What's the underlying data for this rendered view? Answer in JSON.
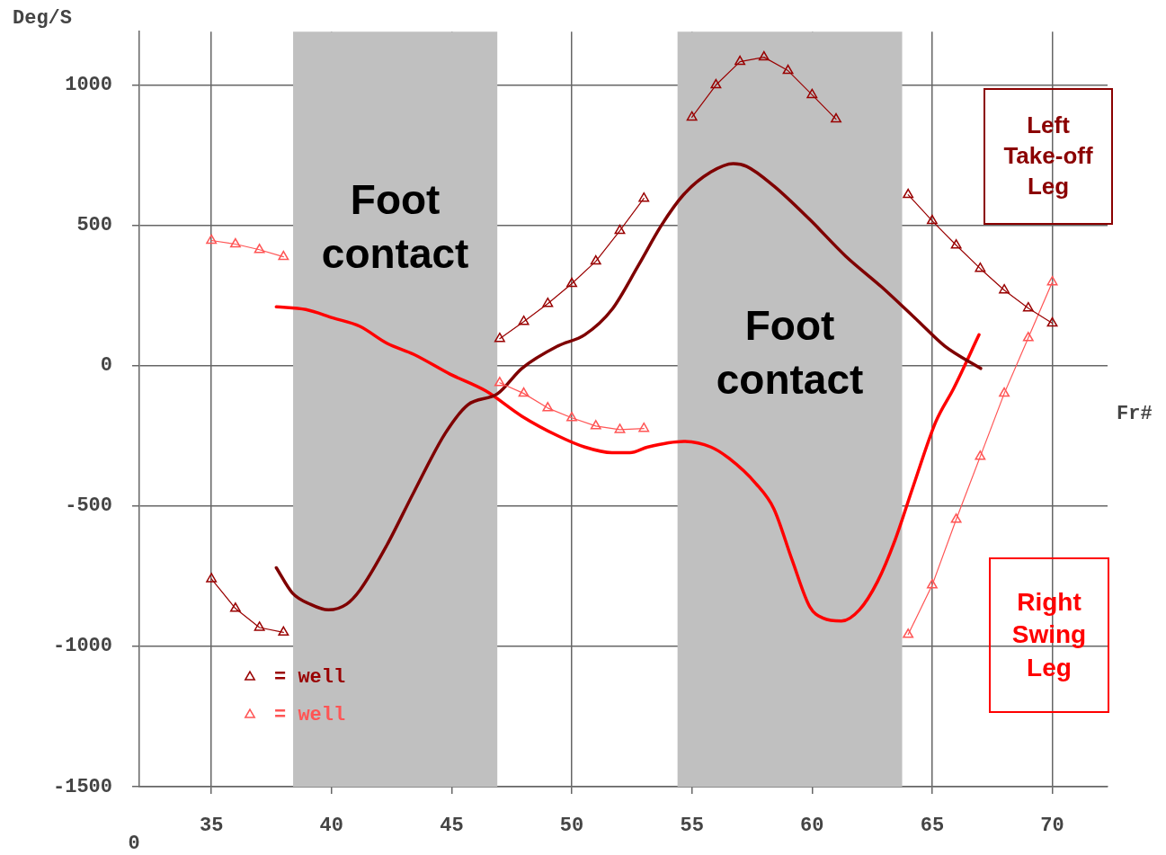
{
  "chart_data": {
    "type": "line",
    "xlabel": "Fr#",
    "ylabel": "Deg/S",
    "xlim": [
      32,
      72.3
    ],
    "xticks": [
      35,
      40,
      45,
      50,
      55,
      60,
      65,
      70
    ],
    "ylim": [
      -1500,
      1190
    ],
    "yticks": [
      -1500,
      -1000,
      -500,
      0,
      500,
      1000
    ],
    "grid": true,
    "legend": "bottom left",
    "x": [
      35,
      36,
      37,
      38,
      39,
      40,
      41,
      42,
      43,
      44,
      45,
      46,
      47,
      48,
      49,
      50,
      51,
      52,
      53,
      54,
      55,
      56,
      57,
      58,
      59,
      60,
      61,
      62,
      63,
      64,
      65,
      66,
      67,
      68,
      69,
      70
    ],
    "series": [
      {
        "name": "= well",
        "color": "#990000",
        "marker": "triangle",
        "values": [
          -760,
          -865,
          -933,
          -950,
          null,
          null,
          null,
          null,
          null,
          null,
          null,
          null,
          96,
          157,
          221,
          292,
          372,
          481,
          596,
          null,
          885,
          1000,
          1083,
          1099,
          1051,
          965,
          878,
          null,
          null,
          609,
          516,
          429,
          346,
          269,
          205,
          151
        ]
      },
      {
        "name": "= well",
        "color": "#ff5555",
        "marker": "triangle",
        "values": [
          446,
          433,
          413,
          388,
          null,
          null,
          null,
          null,
          null,
          null,
          null,
          null,
          -61,
          -99,
          -151,
          -186,
          -215,
          -228,
          -224,
          null,
          null,
          null,
          null,
          null,
          null,
          null,
          null,
          null,
          null,
          -958,
          -782,
          -548,
          -324,
          -99,
          99,
          298
        ]
      },
      {
        "color": "#7f0000",
        "marker": "none",
        "x": [
          37.7,
          38.37,
          39.12,
          39.87,
          40.62,
          41.18,
          42.3,
          43.43,
          44.74,
          45.67,
          46.91,
          47.92,
          49.42,
          50.54,
          51.67,
          52.79,
          53.73,
          54.66,
          55.79,
          56.72,
          57.28,
          58.41,
          59.91,
          61.4,
          62.9,
          64.4,
          65.52,
          67.02
        ],
        "values": [
          -720,
          -810,
          -850,
          -870,
          -850,
          -800,
          -640,
          -450,
          -240,
          -140,
          -100,
          -10,
          70,
          110,
          200,
          360,
          500,
          610,
          690,
          720,
          710,
          640,
          520,
          390,
          280,
          160,
          70,
          -10
        ]
      },
      {
        "color": "#ff0000",
        "marker": "none",
        "x": [
          37.7,
          38.93,
          40.06,
          41.18,
          42.3,
          43.43,
          44.93,
          46.42,
          47.92,
          49.42,
          50.54,
          51.67,
          52.42,
          53.16,
          54.66,
          55.79,
          56.54,
          57.66,
          58.41,
          59.16,
          59.91,
          60.47,
          61.22,
          61.97,
          62.72,
          63.46,
          64.21,
          65.15,
          65.9,
          66.95
        ],
        "values": [
          210,
          200,
          170,
          140,
          80,
          40,
          -30,
          -90,
          -180,
          -250,
          -290,
          -310,
          -310,
          -290,
          -270,
          -290,
          -330,
          -420,
          -510,
          -690,
          -860,
          -900,
          -910,
          -870,
          -770,
          -620,
          -430,
          -200,
          -80,
          110
        ]
      }
    ],
    "bands": [
      {
        "axis": "x",
        "from": 38.4,
        "to": 46.9,
        "label": "Foot contact",
        "color": "#c0c0c0"
      },
      {
        "axis": "x",
        "from": 54.4,
        "to": 63.75,
        "label": "Foot contact",
        "color": "#c0c0c0"
      }
    ],
    "annotations": [
      "Left Take-off Leg",
      "Right Swing Leg",
      "0"
    ]
  }
}
